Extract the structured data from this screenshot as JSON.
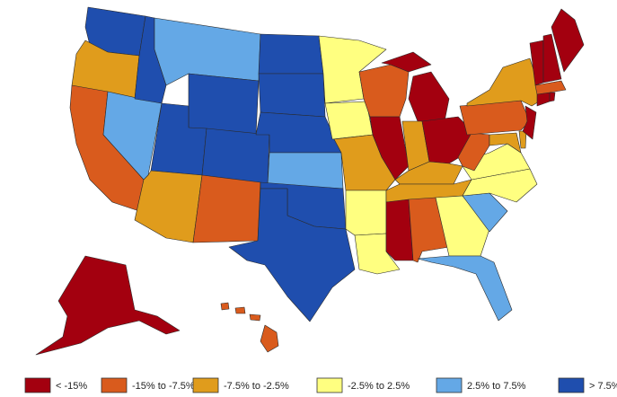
{
  "legend": {
    "items": [
      {
        "label": "< -15%",
        "color": "#a3000f"
      },
      {
        "label": "-15% to -7.5%",
        "color": "#d95b1d"
      },
      {
        "label": "-7.5% to -2.5%",
        "color": "#e09c1c"
      },
      {
        "label": "-2.5% to 2.5%",
        "color": "#ffff80"
      },
      {
        "label": "2.5% to 7.5%",
        "color": "#64a8e6"
      },
      {
        "label": "> 7.5%",
        "color": "#1f4eae"
      }
    ]
  }
}
